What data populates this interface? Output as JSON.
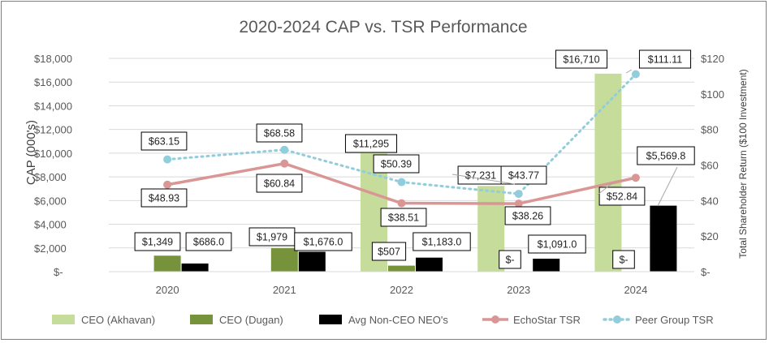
{
  "chart_data": {
    "type": "bar",
    "title": "2020-2024 CAP vs. TSR Performance",
    "ylabel": "CAP (000's)",
    "y2label": "Total Shareholder Return ($100 Investment)",
    "categories": [
      "2020",
      "2021",
      "2022",
      "2023",
      "2024"
    ],
    "ylim": [
      0,
      18000
    ],
    "y2lim": [
      0,
      120
    ],
    "yticks": [
      "$-",
      "$2,000",
      "$4,000",
      "$6,000",
      "$8,000",
      "$10,000",
      "$12,000",
      "$14,000",
      "$16,000",
      "$18,000"
    ],
    "y2ticks": [
      "$-",
      "$20",
      "$40",
      "$60",
      "$80",
      "$100",
      "$120"
    ],
    "grid": true,
    "legend_position": "bottom",
    "series": [
      {
        "name": "CEO (Akhavan)",
        "kind": "bar",
        "color": "#c5dc9a",
        "values": [
          null,
          null,
          11295,
          7231,
          16710
        ],
        "labels": [
          "",
          "",
          "$11,295",
          "$7,231",
          "$16,710"
        ]
      },
      {
        "name": "CEO (Dugan)",
        "kind": "bar",
        "color": "#76933c",
        "values": [
          1349,
          1979,
          507,
          0,
          0
        ],
        "labels": [
          "$1,349",
          "$1,979",
          "$507",
          "$-",
          "$-"
        ]
      },
      {
        "name": "Avg Non-CEO NEO's",
        "kind": "bar",
        "color": "#000000",
        "values": [
          686.0,
          1676.0,
          1183.0,
          1091.0,
          5569.8
        ],
        "labels": [
          "$686.0",
          "$1,676.0",
          "$1,183.0",
          "$1,091.0",
          "$5,569.8"
        ]
      },
      {
        "name": "EchoStar TSR",
        "kind": "line",
        "axis": "right",
        "color": "#d99694",
        "values": [
          48.93,
          60.84,
          38.51,
          38.26,
          52.84
        ],
        "labels": [
          "$48.93",
          "$60.84",
          "$38.51",
          "$38.26",
          "$52.84"
        ]
      },
      {
        "name": "Peer Group TSR",
        "kind": "line",
        "axis": "right",
        "style": "dotted",
        "color": "#92cddc",
        "values": [
          63.15,
          68.58,
          50.39,
          43.77,
          111.11
        ],
        "labels": [
          "$63.15",
          "$68.58",
          "$50.39",
          "$43.77",
          "$111.11"
        ]
      }
    ]
  }
}
